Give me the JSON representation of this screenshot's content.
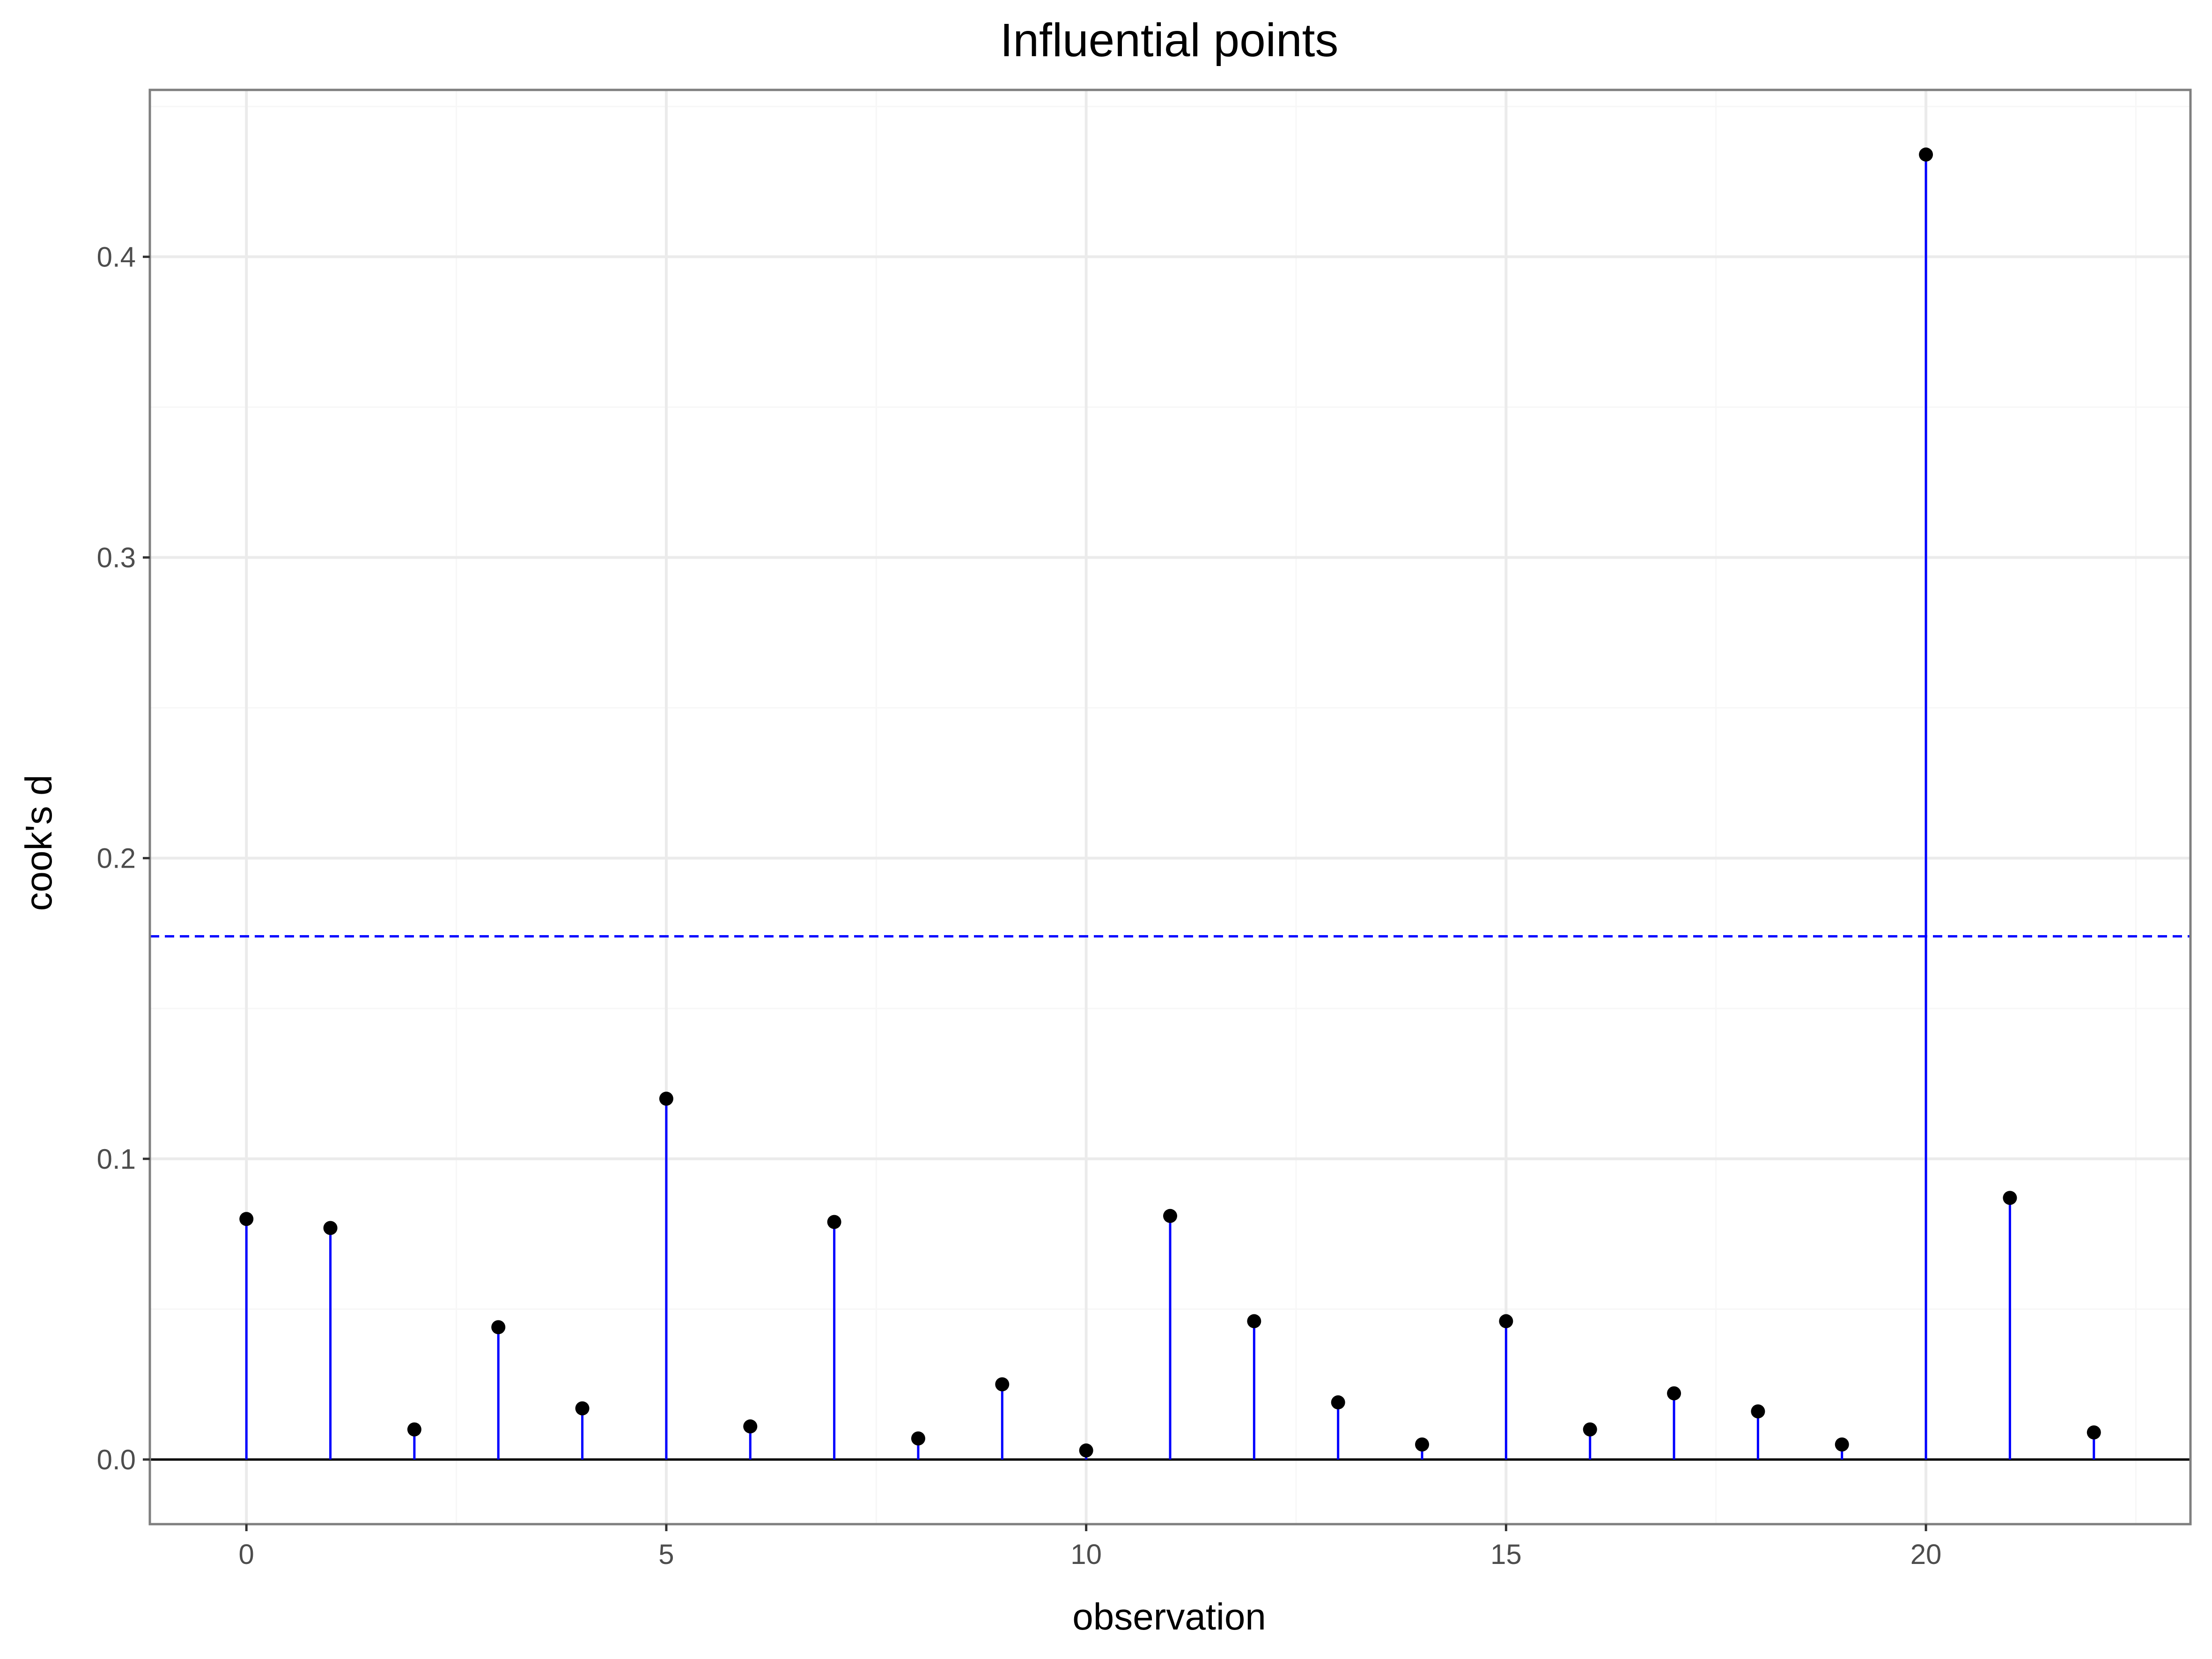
{
  "chart_data": {
    "type": "scatter",
    "style": "lollipop",
    "title": "Influential points",
    "xlabel": "observation",
    "ylabel": "cook's d",
    "xlim": [
      -1.15,
      23.15
    ],
    "ylim": [
      -0.0215,
      0.4555
    ],
    "x_ticks": [
      {
        "value": 0,
        "label": "0"
      },
      {
        "value": 5,
        "label": "5"
      },
      {
        "value": 10,
        "label": "10"
      },
      {
        "value": 15,
        "label": "15"
      },
      {
        "value": 20,
        "label": "20"
      }
    ],
    "y_ticks": [
      {
        "value": 0.0,
        "label": "0.0"
      },
      {
        "value": 0.1,
        "label": "0.1"
      },
      {
        "value": 0.2,
        "label": "0.2"
      },
      {
        "value": 0.3,
        "label": "0.3"
      },
      {
        "value": 0.4,
        "label": "0.4"
      }
    ],
    "x": [
      0,
      1,
      2,
      3,
      4,
      5,
      6,
      7,
      8,
      9,
      10,
      11,
      12,
      13,
      14,
      15,
      16,
      17,
      18,
      19,
      20,
      21,
      22
    ],
    "values": [
      0.08,
      0.077,
      0.01,
      0.044,
      0.017,
      0.12,
      0.011,
      0.079,
      0.007,
      0.025,
      0.003,
      0.081,
      0.046,
      0.019,
      0.005,
      0.046,
      0.01,
      0.022,
      0.016,
      0.005,
      0.434,
      0.087,
      0.009
    ],
    "threshold": 0.174,
    "grid": true,
    "colors": {
      "stem": "#0000ff",
      "point": "#000000",
      "threshold": "#0000ff",
      "baseline": "#000000",
      "grid_major": "#ebebeb",
      "grid_minor": "#f7f7f7",
      "panel_border": "#7f7f7f"
    }
  }
}
